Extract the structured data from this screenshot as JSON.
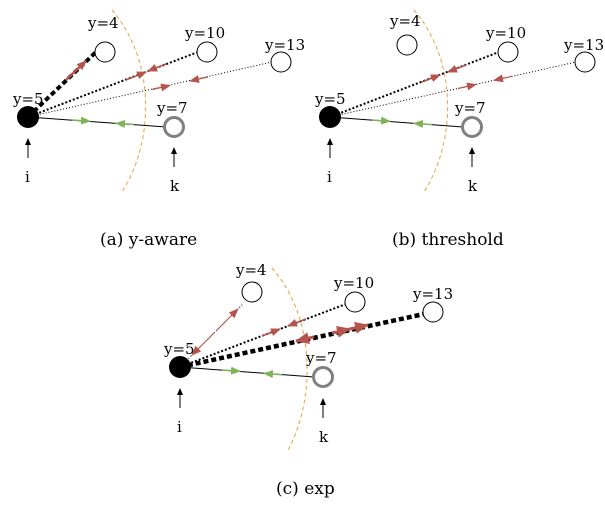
{
  "nodes": {
    "i": "y=5",
    "k": "y=7",
    "a": "y=4",
    "b": "y=10",
    "c": "y=13"
  },
  "pointer_labels": {
    "i": "i",
    "k": "k"
  },
  "panels": [
    {
      "id": "a",
      "caption": "(a) y-aware"
    },
    {
      "id": "b",
      "caption": "(b) threshold"
    },
    {
      "id": "c",
      "caption": "(c) exp"
    }
  ],
  "colors": {
    "target_node": "#000000",
    "focus_node": "#808080",
    "arc": "#e8a33c",
    "green_arrow": "#7fb35a",
    "red_arrow": "#b5544c"
  }
}
